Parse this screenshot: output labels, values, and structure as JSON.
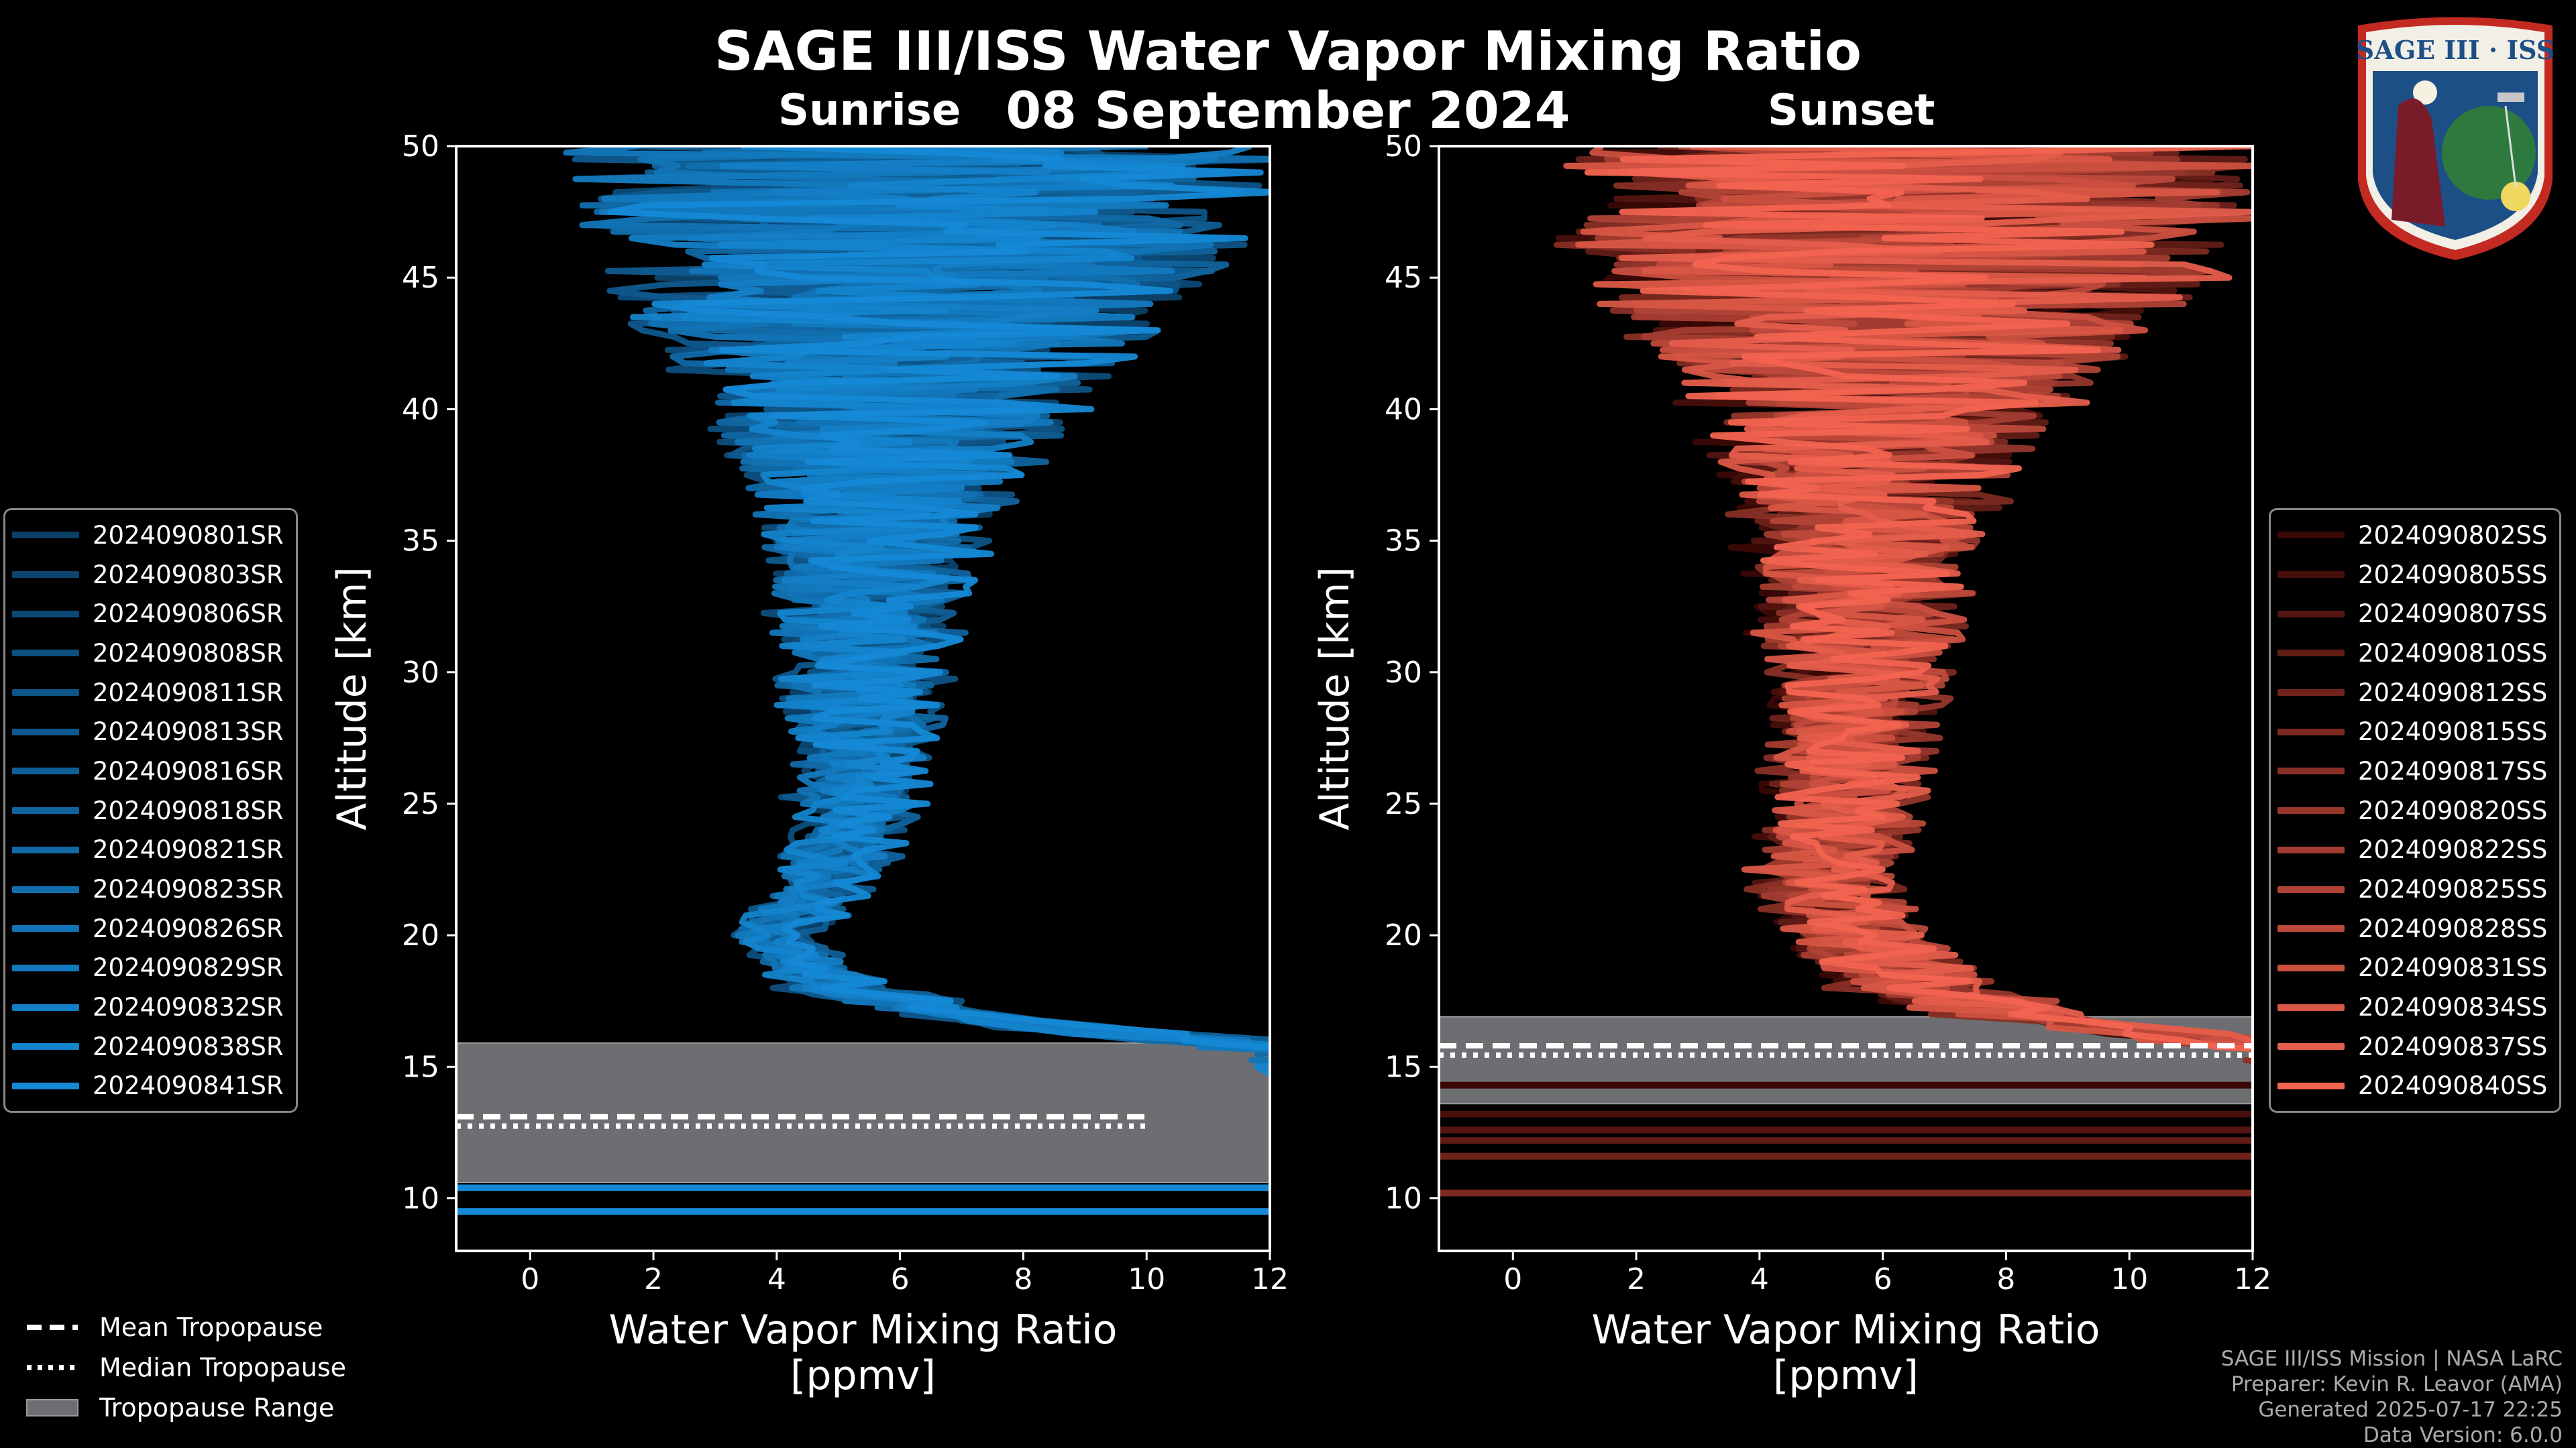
{
  "title": "SAGE III/ISS Water Vapor Mixing Ratio",
  "date": "08 September 2024",
  "sunrise_label": "Sunrise",
  "sunset_label": "Sunset",
  "logo": {
    "text": "SAGE III · ISS"
  },
  "legend_tropopause": [
    {
      "label": "Mean Tropopause",
      "style": "dashed"
    },
    {
      "label": "Median Tropopause",
      "style": "dotted"
    },
    {
      "label": "Tropopause Range",
      "style": "patch"
    }
  ],
  "credits": [
    "SAGE III/ISS Mission | NASA LaRC",
    "Preparer: Kevin R. Leavor (AMA)",
    "Generated 2025-07-17 22:25",
    "Data Version: 6.0.0"
  ],
  "chart_data": [
    {
      "type": "line",
      "panel": "Sunrise",
      "xlabel": "Water Vapor Mixing Ratio\n[ppmv]",
      "ylabel": "Altitude [km]",
      "xlim": [
        -1.2,
        12
      ],
      "ylim": [
        8,
        50
      ],
      "xticks": [
        0,
        2,
        4,
        6,
        8,
        10,
        12
      ],
      "yticks": [
        10,
        15,
        20,
        25,
        30,
        35,
        40,
        45,
        50
      ],
      "tropopause": {
        "mean": 13.1,
        "median": 13.0,
        "range": [
          10.6,
          15.9
        ]
      },
      "low_level_lines_km": [
        10.4,
        9.5
      ],
      "series_colors": {
        "dark": "#0b3f66",
        "light": "#1589d6"
      },
      "series": [
        {
          "name": "2024090801SR"
        },
        {
          "name": "2024090803SR"
        },
        {
          "name": "2024090806SR"
        },
        {
          "name": "2024090808SR"
        },
        {
          "name": "2024090811SR"
        },
        {
          "name": "2024090813SR"
        },
        {
          "name": "2024090816SR"
        },
        {
          "name": "2024090818SR"
        },
        {
          "name": "2024090821SR"
        },
        {
          "name": "2024090823SR"
        },
        {
          "name": "2024090826SR"
        },
        {
          "name": "2024090829SR"
        },
        {
          "name": "2024090832SR"
        },
        {
          "name": "2024090838SR"
        },
        {
          "name": "2024090841SR"
        }
      ],
      "profile_center": [
        {
          "alt": 50,
          "x": 6.5
        },
        {
          "alt": 45,
          "x": 6.2
        },
        {
          "alt": 40,
          "x": 6.0
        },
        {
          "alt": 35,
          "x": 5.6
        },
        {
          "alt": 30,
          "x": 5.4
        },
        {
          "alt": 25,
          "x": 5.3
        },
        {
          "alt": 22,
          "x": 4.9
        },
        {
          "alt": 20,
          "x": 4.0
        },
        {
          "alt": 18,
          "x": 5.0
        },
        {
          "alt": 16.5,
          "x": 8.0
        },
        {
          "alt": 15.5,
          "x": 12.0
        }
      ],
      "profile_spread": [
        {
          "alt": 50,
          "s": 6.5
        },
        {
          "alt": 45,
          "s": 5.5
        },
        {
          "alt": 40,
          "s": 3.2
        },
        {
          "alt": 35,
          "s": 1.8
        },
        {
          "alt": 30,
          "s": 1.4
        },
        {
          "alt": 25,
          "s": 1.0
        },
        {
          "alt": 20,
          "s": 0.6
        },
        {
          "alt": 16,
          "s": 1.0
        }
      ]
    },
    {
      "type": "line",
      "panel": "Sunset",
      "xlabel": "Water Vapor Mixing Ratio\n[ppmv]",
      "ylabel": "Altitude [km]",
      "xlim": [
        -1.2,
        12
      ],
      "ylim": [
        8,
        50
      ],
      "xticks": [
        0,
        2,
        4,
        6,
        8,
        10,
        12
      ],
      "yticks": [
        10,
        15,
        20,
        25,
        30,
        35,
        40,
        45,
        50
      ],
      "tropopause": {
        "mean": 15.8,
        "median": 15.7,
        "range": [
          13.6,
          16.9
        ]
      },
      "low_level_lines_km": [
        14.3,
        13.2,
        12.6,
        12.2,
        11.6,
        10.2
      ],
      "series_colors": {
        "dark": "#3a0806",
        "light": "#f26350"
      },
      "series": [
        {
          "name": "2024090802SS"
        },
        {
          "name": "2024090805SS"
        },
        {
          "name": "2024090807SS"
        },
        {
          "name": "2024090810SS"
        },
        {
          "name": "2024090812SS"
        },
        {
          "name": "2024090815SS"
        },
        {
          "name": "2024090817SS"
        },
        {
          "name": "2024090820SS"
        },
        {
          "name": "2024090822SS"
        },
        {
          "name": "2024090825SS"
        },
        {
          "name": "2024090828SS"
        },
        {
          "name": "2024090831SS"
        },
        {
          "name": "2024090834SS"
        },
        {
          "name": "2024090837SS"
        },
        {
          "name": "2024090840SS"
        }
      ],
      "profile_center": [
        {
          "alt": 50,
          "x": 6.5
        },
        {
          "alt": 45,
          "x": 6.2
        },
        {
          "alt": 40,
          "x": 5.8
        },
        {
          "alt": 35,
          "x": 5.6
        },
        {
          "alt": 30,
          "x": 5.6
        },
        {
          "alt": 25,
          "x": 5.3
        },
        {
          "alt": 22,
          "x": 5.0
        },
        {
          "alt": 20,
          "x": 5.4
        },
        {
          "alt": 18,
          "x": 6.5
        },
        {
          "alt": 16.5,
          "x": 9.0
        },
        {
          "alt": 15.5,
          "x": 12.0
        }
      ],
      "profile_spread": [
        {
          "alt": 50,
          "s": 6.5
        },
        {
          "alt": 45,
          "s": 5.8
        },
        {
          "alt": 40,
          "s": 3.4
        },
        {
          "alt": 35,
          "s": 2.0
        },
        {
          "alt": 30,
          "s": 1.6
        },
        {
          "alt": 25,
          "s": 1.3
        },
        {
          "alt": 20,
          "s": 1.2
        },
        {
          "alt": 16,
          "s": 1.5
        }
      ]
    }
  ]
}
